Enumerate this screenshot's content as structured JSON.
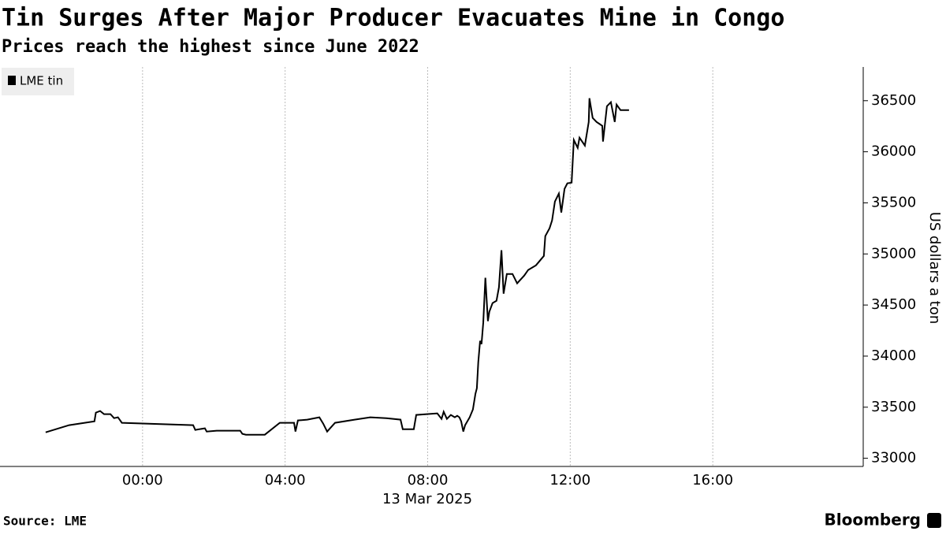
{
  "chart_data": {
    "type": "line",
    "title": "Tin Surges After Major Producer Evacuates Mine in Congo",
    "subtitle": "Prices reach the highest since June 2022",
    "y_label": "US dollars a ton",
    "date_label": "13 Mar 2025",
    "source": "Source: LME",
    "brand": "Bloomberg",
    "xlim": [
      -4,
      20
    ],
    "xticks": [
      {
        "value": 0,
        "label": "00:00"
      },
      {
        "value": 4,
        "label": "04:00"
      },
      {
        "value": 8,
        "label": "08:00"
      },
      {
        "value": 12,
        "label": "12:00"
      },
      {
        "value": 16,
        "label": "16:00"
      }
    ],
    "ylim": [
      32920,
      36830
    ],
    "yticks": [
      33000,
      33500,
      34000,
      34500,
      35000,
      35500,
      36000,
      36500
    ],
    "grid": true,
    "legend": "top-left",
    "series": [
      {
        "name": "LME tin",
        "color": "#000000",
        "x": [
          -2.72,
          -2.06,
          -1.35,
          -1.31,
          -1.19,
          -1.08,
          -0.9,
          -0.8,
          -0.69,
          -0.58,
          1.42,
          1.48,
          1.75,
          1.8,
          2.08,
          2.74,
          2.8,
          2.9,
          3.43,
          3.85,
          4.25,
          4.29,
          4.36,
          4.62,
          4.96,
          5.07,
          5.18,
          5.4,
          5.95,
          6.39,
          6.84,
          7.24,
          7.3,
          7.61,
          7.68,
          8.27,
          8.39,
          8.45,
          8.54,
          8.65,
          8.76,
          8.83,
          8.89,
          8.94,
          9.0,
          9.05,
          9.18,
          9.27,
          9.34,
          9.38,
          9.42,
          9.47,
          9.51,
          9.56,
          9.62,
          9.69,
          9.73,
          9.82,
          9.93,
          10.0,
          10.07,
          10.13,
          10.22,
          10.31,
          10.38,
          10.51,
          10.71,
          10.82,
          11.04,
          11.26,
          11.3,
          11.42,
          11.49,
          11.57,
          11.68,
          11.75,
          11.84,
          11.92,
          12.04,
          12.1,
          12.21,
          12.26,
          12.41,
          12.52,
          12.54,
          12.63,
          12.74,
          12.9,
          12.92,
          13.03,
          13.14,
          13.25,
          13.3,
          13.41,
          13.65
        ],
        "values": [
          33254,
          33324,
          33362,
          33447,
          33463,
          33432,
          33432,
          33393,
          33401,
          33347,
          33324,
          33278,
          33293,
          33262,
          33270,
          33270,
          33239,
          33231,
          33231,
          33347,
          33347,
          33262,
          33370,
          33378,
          33401,
          33339,
          33262,
          33347,
          33378,
          33401,
          33393,
          33378,
          33285,
          33285,
          33424,
          33440,
          33386,
          33455,
          33386,
          33424,
          33401,
          33416,
          33401,
          33362,
          33262,
          33324,
          33401,
          33478,
          33632,
          33686,
          33941,
          34149,
          34118,
          34326,
          34766,
          34342,
          34434,
          34519,
          34542,
          34673,
          35036,
          34611,
          34804,
          34804,
          34804,
          34712,
          34789,
          34843,
          34889,
          34981,
          35174,
          35251,
          35328,
          35513,
          35591,
          35405,
          35637,
          35691,
          35698,
          36115,
          36038,
          36138,
          36061,
          36292,
          36524,
          36331,
          36292,
          36254,
          36100,
          36446,
          36485,
          36292,
          36462,
          36408,
          36408
        ]
      }
    ]
  }
}
